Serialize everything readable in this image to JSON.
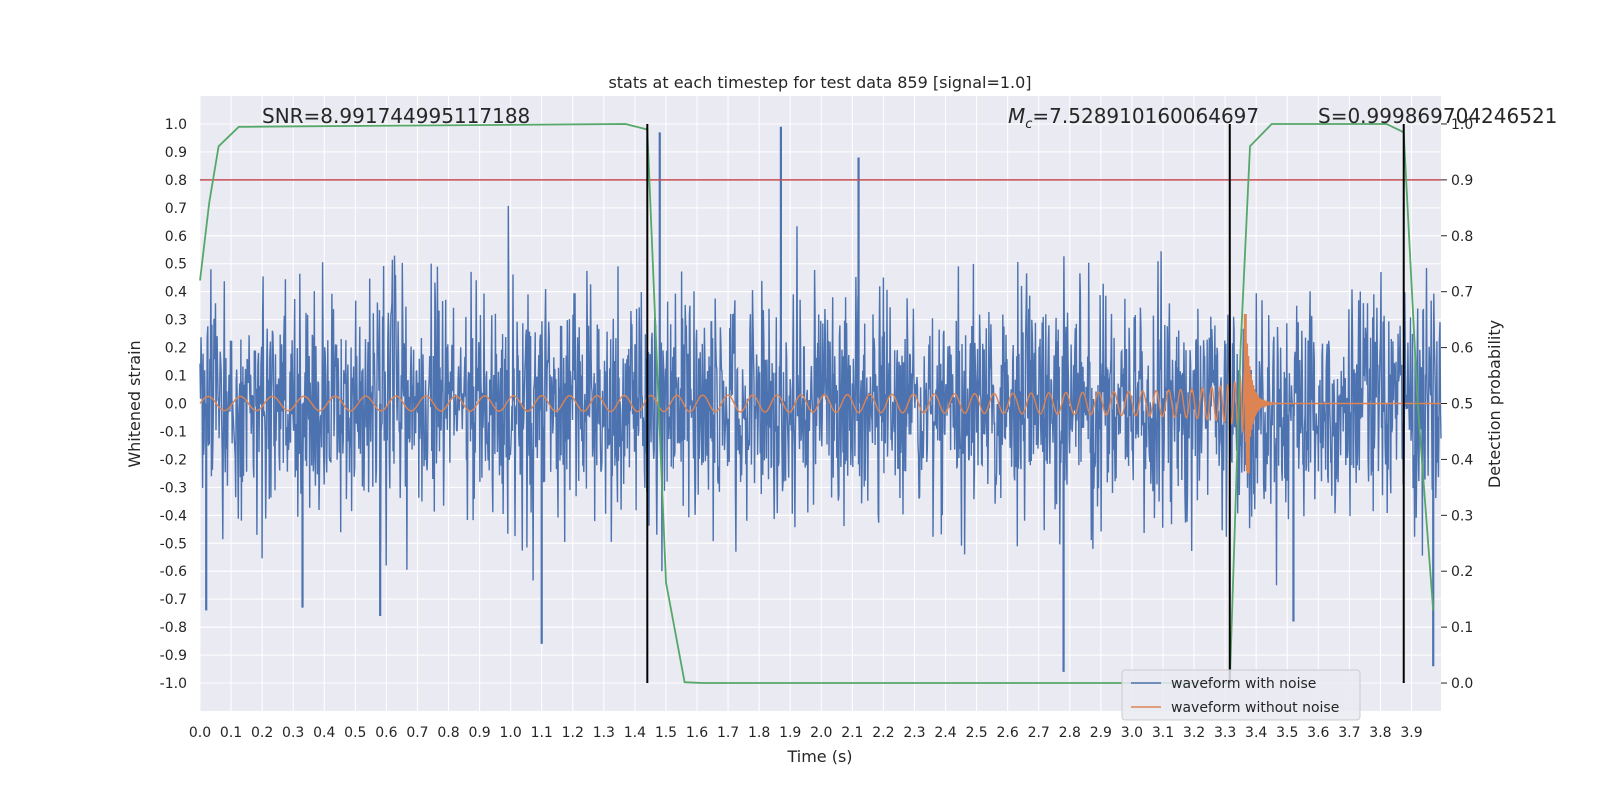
{
  "chart_data": {
    "type": "line",
    "title": "stats at each timestep for test data 859 [signal=1.0]",
    "xlabel": "Time (s)",
    "ylabel_left": "Whitened strain",
    "ylabel_right": "Detection probability",
    "xlim": [
      0.0,
      3.995
    ],
    "ylim_left": [
      -1.1,
      1.1
    ],
    "ylim_right": [
      -0.05,
      1.05
    ],
    "grid": true,
    "legend_position": "lower-right",
    "x_ticks": [
      "0.0",
      "0.1",
      "0.2",
      "0.3",
      "0.4",
      "0.5",
      "0.6",
      "0.7",
      "0.8",
      "0.9",
      "1.0",
      "1.1",
      "1.2",
      "1.3",
      "1.4",
      "1.5",
      "1.6",
      "1.7",
      "1.8",
      "1.9",
      "2.0",
      "2.1",
      "2.2",
      "2.3",
      "2.4",
      "2.5",
      "2.6",
      "2.7",
      "2.8",
      "2.9",
      "3.0",
      "3.1",
      "3.2",
      "3.3",
      "3.4",
      "3.5",
      "3.6",
      "3.7",
      "3.8",
      "3.9"
    ],
    "y_ticks_left": [
      "1.0",
      "0.9",
      "0.8",
      "0.7",
      "0.6",
      "0.5",
      "0.4",
      "0.3",
      "0.2",
      "0.1",
      "0.0",
      "-0.1",
      "-0.2",
      "-0.3",
      "-0.4",
      "-0.5",
      "-0.6",
      "-0.7",
      "-0.8",
      "-0.9",
      "-1.0"
    ],
    "y_ticks_right": [
      "1.0",
      "0.9",
      "0.8",
      "0.7",
      "0.6",
      "0.5",
      "0.4",
      "0.3",
      "0.2",
      "0.1",
      "0.0"
    ],
    "annotations": {
      "snr": "SNR=8.991744995117188",
      "mc_symbol": "M",
      "mc_sub": "c",
      "mc_value": "=7.528910160064697",
      "s": "S=0.999869704246521"
    },
    "threshold": {
      "value": 0.9,
      "axis": "right",
      "color": "#c44e52"
    },
    "vlines": [
      1.44,
      3.315,
      3.875
    ],
    "series": [
      {
        "name": "waveform with noise",
        "color": "#4c72b0",
        "axis": "left",
        "kind": "noise",
        "std": 0.2,
        "spikes": [
          [
            0.02,
            -0.74
          ],
          [
            0.33,
            -0.73
          ],
          [
            0.58,
            -0.76
          ],
          [
            1.1,
            -0.86
          ],
          [
            1.48,
            0.97
          ],
          [
            1.87,
            0.99
          ],
          [
            2.12,
            0.88
          ],
          [
            2.78,
            -0.96
          ],
          [
            3.52,
            -0.78
          ],
          [
            3.97,
            -0.94
          ]
        ]
      },
      {
        "name": "waveform without noise",
        "color": "#dd8452",
        "axis": "left",
        "kind": "chirp",
        "t_merge": 3.37,
        "peak": 0.32,
        "trough": -0.25
      },
      {
        "name": "detection probability",
        "color": "#55a868",
        "axis": "right",
        "kind": "points",
        "x": [
          0.0,
          0.03,
          0.06,
          0.125,
          1.37,
          1.44,
          1.5,
          1.56,
          1.62,
          3.29,
          3.315,
          3.35,
          3.38,
          3.45,
          3.82,
          3.875,
          3.92,
          3.97
        ],
        "y": [
          0.72,
          0.86,
          0.96,
          0.995,
          1.0,
          0.99,
          0.18,
          0.0015,
          0.0,
          0.0,
          0.0,
          0.6,
          0.96,
          1.0,
          1.0,
          0.985,
          0.5,
          0.13
        ]
      }
    ],
    "legend": [
      {
        "label": "waveform with noise",
        "color": "#4c72b0"
      },
      {
        "label": "waveform without noise",
        "color": "#dd8452"
      }
    ]
  }
}
